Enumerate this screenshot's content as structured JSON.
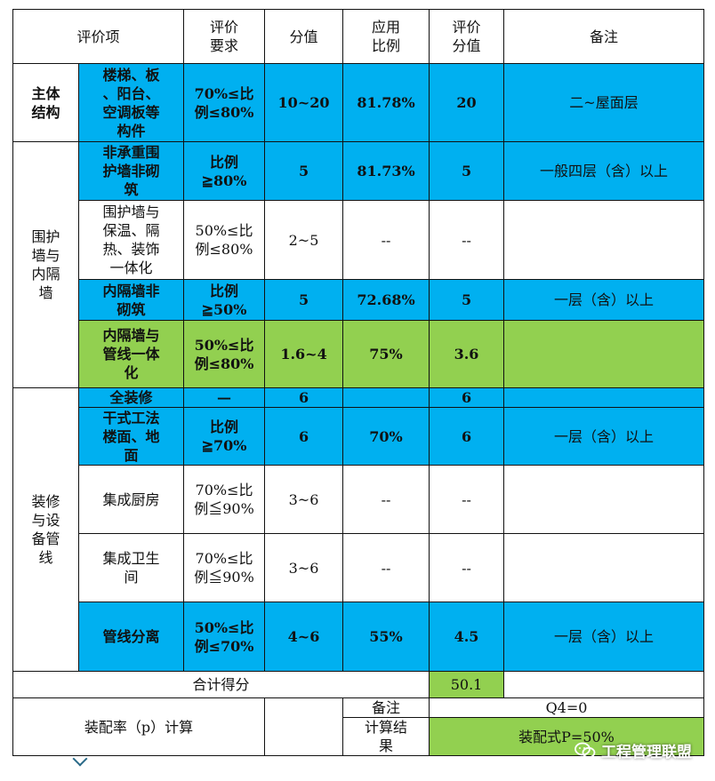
{
  "header": {
    "item": "评价项",
    "requirement": "评价\n要求",
    "score_value": "分值",
    "apply_ratio": "应用\n比例",
    "eval_score": "评价\n分值",
    "remark": "备注"
  },
  "sections": {
    "main_structure": "主体\n结构",
    "envelope": "围护\n墙与\n内隔\n墙",
    "decoration": "装修\n与设\n备管\n线"
  },
  "rows": [
    {
      "item": "楼梯、板\n、阳台、\n空调板等\n构件",
      "req": "70%≤比\n例≤80%",
      "score": "10~20",
      "ratio": "81.78%",
      "eval": "20",
      "note": "二~屋面层"
    },
    {
      "item": "非承重围\n护墙非砌\n筑",
      "req": "比例\n≧80%",
      "score": "5",
      "ratio": "81.73%",
      "eval": "5",
      "note": "一般四层（含）以上"
    },
    {
      "item": "围护墙与\n保温、隔\n热、装饰\n一体化",
      "req": "50%≤比\n例≤80%",
      "score": "2~5",
      "ratio": "--",
      "eval": "--",
      "note": ""
    },
    {
      "item": "内隔墙非\n砌筑",
      "req": "比例\n≧50%",
      "score": "5",
      "ratio": "72.68%",
      "eval": "5",
      "note": "一层（含）以上"
    },
    {
      "item": "内隔墙与\n管线一体\n化",
      "req": "50%≤比\n例≤80%",
      "score": "1.6~4",
      "ratio": "75%",
      "eval": "3.6",
      "note": ""
    },
    {
      "item": "全装修",
      "req": "—",
      "score": "6",
      "ratio": "",
      "eval": "6",
      "note": ""
    },
    {
      "item": "干式工法\n楼面、地\n面",
      "req": "比例\n≧70%",
      "score": "6",
      "ratio": "70%",
      "eval": "6",
      "note": "一层（含）以上"
    },
    {
      "item": "集成厨房",
      "req": "70%≤比\n例≦90%",
      "score": "3~6",
      "ratio": "--",
      "eval": "--",
      "note": ""
    },
    {
      "item": "集成卫生\n间",
      "req": "70%≤比\n例≦90%",
      "score": "3~6",
      "ratio": "--",
      "eval": "--",
      "note": ""
    },
    {
      "item": "管线分离",
      "req": "50%≤比\n例≤70%",
      "score": "4~6",
      "ratio": "55%",
      "eval": "4.5",
      "note": "一层（含）以上"
    }
  ],
  "total": {
    "label": "合计得分",
    "value": "50.1"
  },
  "calc": {
    "label": "装配率（p）计算",
    "remark_label": "备注",
    "remark_value": "Q4=0",
    "result_label": "计算结\n果",
    "result_value": "装配式P=50%"
  },
  "watermark": {
    "text": "工程管理联盟",
    "icon": "wechat-icon"
  },
  "colors": {
    "blue": "#00b0f0",
    "green": "#92d050"
  }
}
